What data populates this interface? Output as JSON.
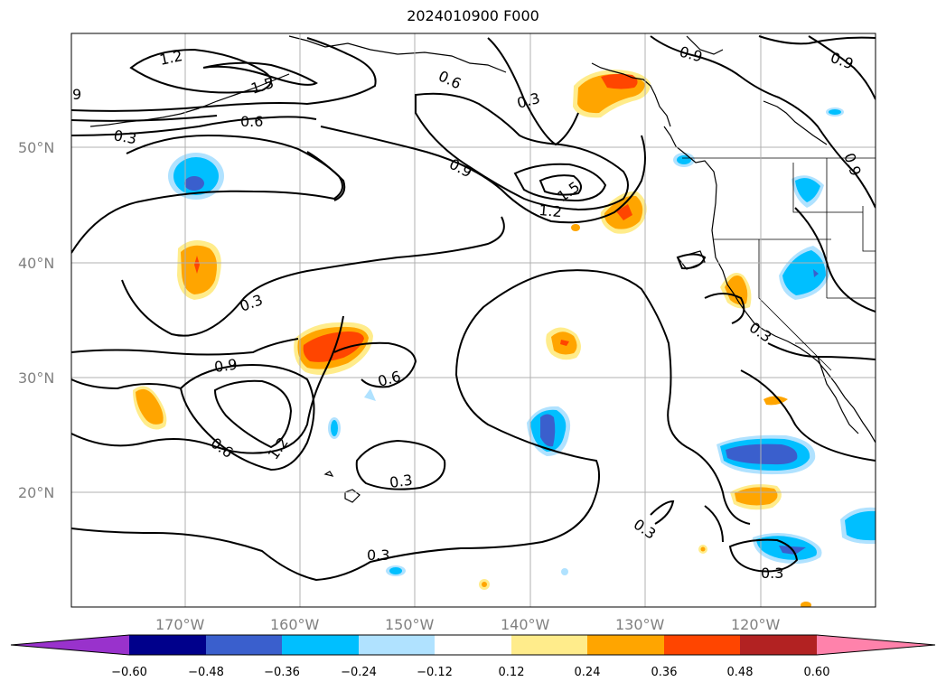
{
  "title": "2024010900 F000",
  "colors": {
    "neg_060_less": "#9932cc",
    "neg_060": "#00008b",
    "neg_048": "#3a5fcd",
    "neg_036": "#00bfff",
    "neg_024": "#b0e2ff",
    "neutral": "#ffffff",
    "pos_012": "#ffec8b",
    "pos_024": "#ffa500",
    "pos_036": "#ff4500",
    "pos_048": "#b22222",
    "pos_060": "#ff82ab"
  },
  "map": {
    "lon_labels": [
      "170°W",
      "160°W",
      "150°W",
      "140°W",
      "130°W",
      "120°W"
    ],
    "lat_labels": [
      "50°N",
      "40°N",
      "30°N",
      "20°N"
    ],
    "contour_labels": [
      {
        "text": "1.2"
      },
      {
        "text": "1.5"
      },
      {
        "text": "0.6"
      },
      {
        "text": "0.3"
      },
      {
        "text": "9"
      },
      {
        "text": "0.6"
      },
      {
        "text": "0.3"
      },
      {
        "text": "0.9"
      },
      {
        "text": "0.9"
      },
      {
        "text": "0.9"
      },
      {
        "text": "1.2"
      },
      {
        "text": "1.5"
      },
      {
        "text": "0.3"
      },
      {
        "text": "0.9"
      },
      {
        "text": "0.6"
      },
      {
        "text": "0.6"
      },
      {
        "text": "1.2"
      },
      {
        "text": "0.3"
      },
      {
        "text": "0.3"
      },
      {
        "text": "0.3"
      },
      {
        "text": "0.3"
      },
      {
        "text": "0.3"
      },
      {
        "text": "0.9"
      }
    ]
  },
  "colorbar": {
    "ticks": [
      "−0.60",
      "−0.48",
      "−0.36",
      "−0.24",
      "−0.12",
      "0.12",
      "0.24",
      "0.36",
      "0.48",
      "0.60"
    ]
  }
}
